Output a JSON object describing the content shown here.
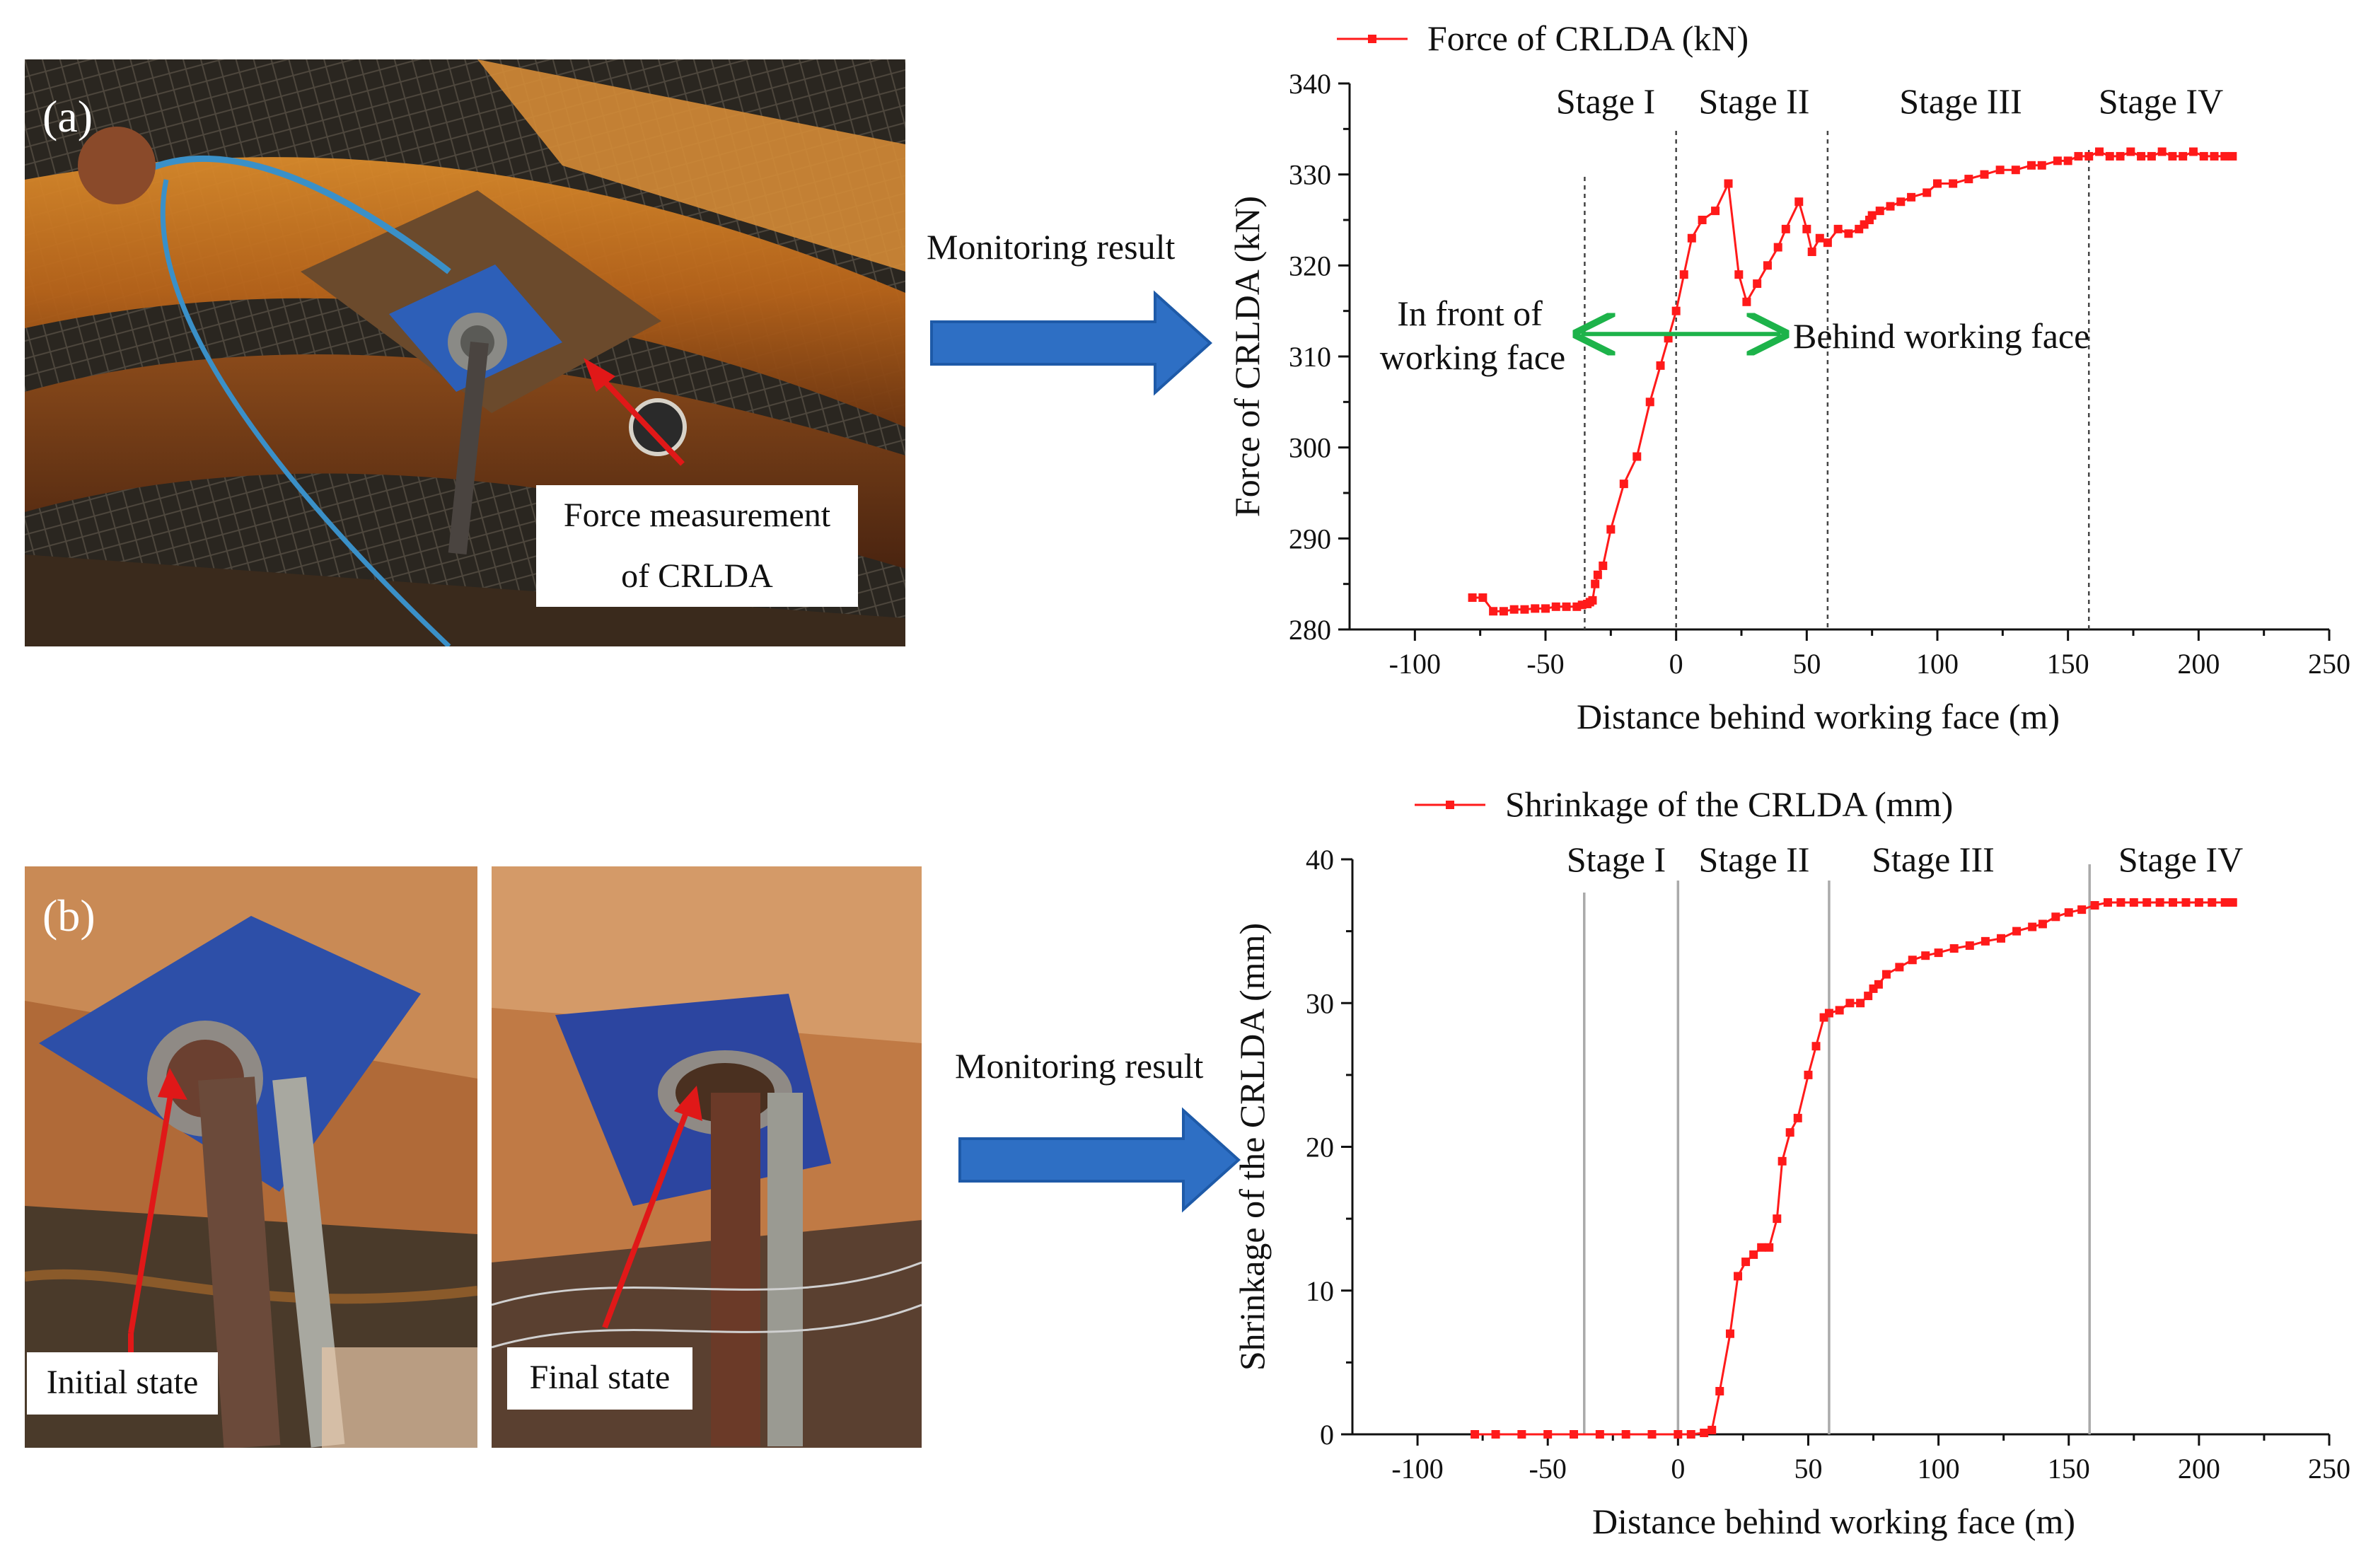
{
  "panels": {
    "a": {
      "tag": "(a)",
      "callout_lines": [
        "Force measurement",
        "of CRLDA"
      ],
      "arrow_label": "Monitoring result"
    },
    "b": {
      "tag": "(b)",
      "initial_label": "Initial state",
      "final_label": "Final state",
      "arrow_label": "Monitoring result"
    }
  },
  "colors": {
    "series": "#ff1a1a",
    "arrow_blue": "#2e6fc4",
    "annotation_green": "#1db34a",
    "photo_arrow": "#e01818"
  },
  "chart_data": [
    {
      "type": "line",
      "legend": "Force of CRLDA (kN)",
      "xlabel": "Distance behind working face (m)",
      "ylabel": "Force of CRLDA (kN)",
      "xlim": [
        -125,
        250
      ],
      "ylim": [
        280,
        340
      ],
      "xticks": [
        -100,
        -50,
        0,
        50,
        100,
        150,
        200,
        250
      ],
      "yticks": [
        280,
        290,
        300,
        310,
        320,
        330,
        340
      ],
      "stage_labels": [
        "Stage I",
        "Stage II",
        "Stage III",
        "Stage IV"
      ],
      "stage_boundaries": [
        -35,
        0,
        58,
        158
      ],
      "annotations": {
        "front": [
          "In front of",
          "working face"
        ],
        "behind": "Behind working face",
        "arrow_y": 312
      },
      "series": [
        {
          "name": "Force of CRLDA (kN)",
          "x": [
            -78,
            -74,
            -70,
            -66,
            -62,
            -58,
            -54,
            -50,
            -46,
            -42,
            -38,
            -36,
            -34,
            -33,
            -32,
            -31,
            -30,
            -28,
            -25,
            -20,
            -15,
            -10,
            -6,
            -3,
            0,
            3,
            6,
            10,
            15,
            20,
            24,
            27,
            31,
            35,
            39,
            42,
            47,
            50,
            52,
            55,
            58,
            62,
            66,
            70,
            72,
            74,
            75,
            78,
            82,
            86,
            90,
            96,
            100,
            106,
            112,
            118,
            124,
            130,
            136,
            140,
            146,
            150,
            154,
            158,
            162,
            166,
            170,
            174,
            178,
            182,
            186,
            190,
            194,
            198,
            202,
            206,
            210,
            213
          ],
          "y": [
            283.5,
            283.5,
            282,
            282,
            282.2,
            282.2,
            282.3,
            282.3,
            282.5,
            282.5,
            282.5,
            282.7,
            282.8,
            283,
            283.2,
            285,
            286,
            287,
            291,
            296,
            299,
            305,
            309,
            312,
            315,
            319,
            323,
            325,
            326,
            329,
            319,
            316,
            318,
            320,
            322,
            324,
            327,
            324,
            321.5,
            323,
            322.5,
            324,
            323.5,
            324,
            324.5,
            325,
            325.5,
            326,
            326.5,
            327,
            327.5,
            328,
            329,
            329,
            329.5,
            330,
            330.5,
            330.5,
            331,
            331,
            331.5,
            331.5,
            332,
            332,
            332.5,
            332,
            332,
            332.5,
            332,
            332,
            332.5,
            332,
            332,
            332.5,
            332,
            332,
            332,
            332
          ]
        }
      ]
    },
    {
      "type": "line",
      "legend": "Shrinkage of the CRLDA (mm)",
      "xlabel": "Distance behind working face (m)",
      "ylabel": "Shrinkage of the CRLDA (mm)",
      "xlim": [
        -125,
        250
      ],
      "ylim": [
        0,
        40
      ],
      "xticks": [
        -100,
        -50,
        0,
        50,
        100,
        150,
        200,
        250
      ],
      "yticks": [
        0,
        10,
        20,
        30,
        40
      ],
      "stage_labels": [
        "Stage I",
        "Stage II",
        "Stage III",
        "Stage IV"
      ],
      "stage_boundaries": [
        -36,
        0,
        58,
        158
      ],
      "series": [
        {
          "name": "Shrinkage of the CRLDA (mm)",
          "x": [
            -78,
            -70,
            -60,
            -50,
            -40,
            -30,
            -20,
            -10,
            0,
            5,
            10,
            13,
            16,
            20,
            23,
            26,
            29,
            32,
            35,
            38,
            40,
            43,
            46,
            50,
            53,
            56,
            58,
            62,
            66,
            70,
            73,
            75,
            77,
            80,
            85,
            90,
            95,
            100,
            106,
            112,
            118,
            124,
            130,
            136,
            140,
            145,
            150,
            155,
            160,
            165,
            170,
            175,
            180,
            185,
            190,
            195,
            200,
            205,
            210,
            213
          ],
          "y": [
            0,
            0,
            0,
            0,
            0,
            0,
            0,
            0,
            0,
            0,
            0.1,
            0.3,
            3,
            7,
            11,
            12,
            12.5,
            13,
            13,
            15,
            19,
            21,
            22,
            25,
            27,
            29,
            29.3,
            29.5,
            30,
            30,
            30.5,
            31,
            31.3,
            32,
            32.5,
            33,
            33.3,
            33.5,
            33.8,
            34,
            34.3,
            34.5,
            35,
            35.3,
            35.5,
            36,
            36.3,
            36.5,
            36.8,
            37,
            37,
            37,
            37,
            37,
            37,
            37,
            37,
            37,
            37,
            37
          ]
        }
      ]
    }
  ]
}
